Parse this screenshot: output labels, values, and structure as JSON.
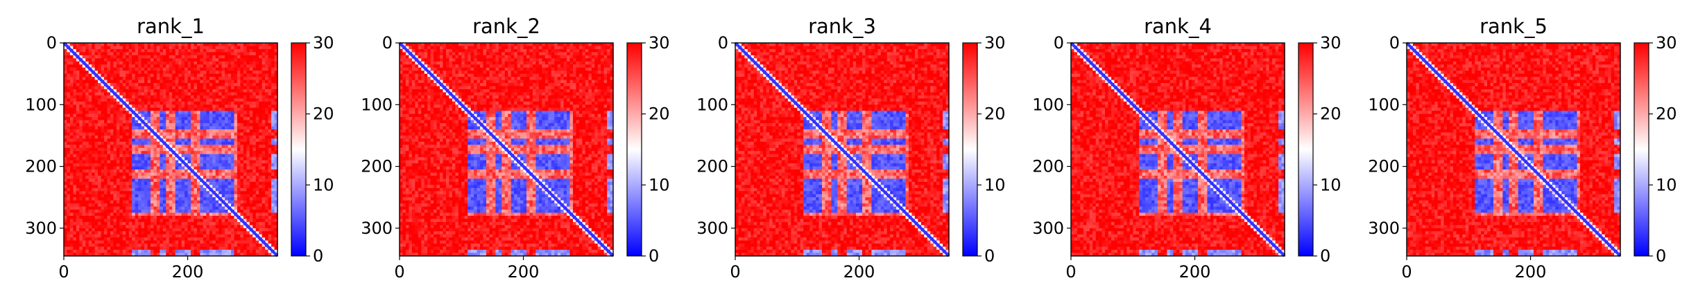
{
  "chart_data": [
    {
      "type": "heatmap",
      "title": "rank_1",
      "xlim": [
        0,
        345
      ],
      "ylim": [
        345,
        0
      ],
      "x_ticks": [
        0,
        200
      ],
      "y_ticks": [
        0,
        100,
        200,
        300
      ],
      "colorbar": {
        "min": 0,
        "max": 30,
        "ticks": [
          0,
          10,
          20,
          30
        ]
      },
      "colormap": [
        "#0000ff",
        "#ffffff",
        "#ff0000"
      ],
      "blocks": {
        "domain_range": [
          110,
          280
        ],
        "row_bands": [
          [
            110,
            140
          ],
          [
            153,
            165
          ],
          [
            178,
            205
          ],
          [
            218,
            275
          ]
        ],
        "col_bands": [
          [
            110,
            140
          ],
          [
            153,
            165
          ],
          [
            178,
            205
          ],
          [
            218,
            275
          ]
        ],
        "end_segment": [
          335,
          345
        ]
      }
    },
    {
      "type": "heatmap",
      "title": "rank_2",
      "xlim": [
        0,
        345
      ],
      "ylim": [
        345,
        0
      ],
      "x_ticks": [
        0,
        200
      ],
      "y_ticks": [
        0,
        100,
        200,
        300
      ],
      "colorbar": {
        "min": 0,
        "max": 30,
        "ticks": [
          0,
          10,
          20,
          30
        ]
      },
      "colormap": [
        "#0000ff",
        "#ffffff",
        "#ff0000"
      ],
      "blocks": {
        "domain_range": [
          110,
          280
        ],
        "row_bands": [
          [
            110,
            140
          ],
          [
            153,
            165
          ],
          [
            178,
            205
          ],
          [
            218,
            275
          ]
        ],
        "col_bands": [
          [
            110,
            140
          ],
          [
            153,
            165
          ],
          [
            178,
            205
          ],
          [
            218,
            275
          ]
        ],
        "end_segment": [
          335,
          345
        ]
      }
    },
    {
      "type": "heatmap",
      "title": "rank_3",
      "xlim": [
        0,
        345
      ],
      "ylim": [
        345,
        0
      ],
      "x_ticks": [
        0,
        200
      ],
      "y_ticks": [
        0,
        100,
        200,
        300
      ],
      "colorbar": {
        "min": 0,
        "max": 30,
        "ticks": [
          0,
          10,
          20,
          30
        ]
      },
      "colormap": [
        "#0000ff",
        "#ffffff",
        "#ff0000"
      ],
      "blocks": {
        "domain_range": [
          110,
          280
        ],
        "row_bands": [
          [
            110,
            140
          ],
          [
            153,
            165
          ],
          [
            178,
            205
          ],
          [
            218,
            275
          ]
        ],
        "col_bands": [
          [
            110,
            140
          ],
          [
            153,
            165
          ],
          [
            178,
            205
          ],
          [
            218,
            275
          ]
        ],
        "end_segment": [
          335,
          345
        ]
      }
    },
    {
      "type": "heatmap",
      "title": "rank_4",
      "xlim": [
        0,
        345
      ],
      "ylim": [
        345,
        0
      ],
      "x_ticks": [
        0,
        200
      ],
      "y_ticks": [
        0,
        100,
        200,
        300
      ],
      "colorbar": {
        "min": 0,
        "max": 30,
        "ticks": [
          0,
          10,
          20,
          30
        ]
      },
      "colormap": [
        "#0000ff",
        "#ffffff",
        "#ff0000"
      ],
      "blocks": {
        "domain_range": [
          110,
          280
        ],
        "row_bands": [
          [
            110,
            140
          ],
          [
            153,
            165
          ],
          [
            178,
            205
          ],
          [
            218,
            275
          ]
        ],
        "col_bands": [
          [
            110,
            140
          ],
          [
            153,
            165
          ],
          [
            178,
            205
          ],
          [
            218,
            275
          ]
        ],
        "end_segment": [
          335,
          345
        ]
      }
    },
    {
      "type": "heatmap",
      "title": "rank_5",
      "xlim": [
        0,
        345
      ],
      "ylim": [
        345,
        0
      ],
      "x_ticks": [
        0,
        200
      ],
      "y_ticks": [
        0,
        100,
        200,
        300
      ],
      "colorbar": {
        "min": 0,
        "max": 30,
        "ticks": [
          0,
          10,
          20,
          30
        ]
      },
      "colormap": [
        "#0000ff",
        "#ffffff",
        "#ff0000"
      ],
      "blocks": {
        "domain_range": [
          110,
          280
        ],
        "row_bands": [
          [
            110,
            140
          ],
          [
            153,
            165
          ],
          [
            178,
            205
          ],
          [
            218,
            275
          ]
        ],
        "col_bands": [
          [
            110,
            140
          ],
          [
            153,
            165
          ],
          [
            178,
            205
          ],
          [
            218,
            275
          ]
        ],
        "end_segment": [
          335,
          345
        ]
      }
    }
  ]
}
